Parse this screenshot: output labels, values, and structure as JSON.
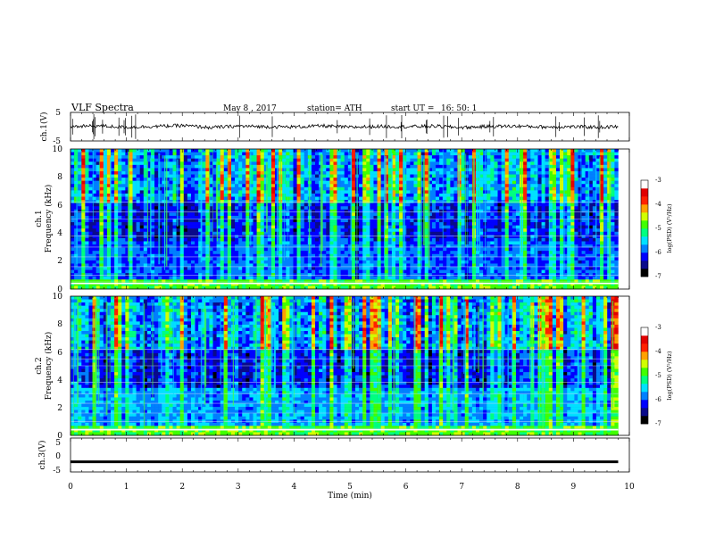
{
  "header": {
    "title": "VLF  Spectra",
    "date": "May 8  , 2017",
    "station": "station= ATH",
    "start_label": "start  UT  =",
    "start_time": "16: 50: 1"
  },
  "colors": {
    "colormap": [
      "#000000",
      "#0a0a8a",
      "#0000ff",
      "#0080ff",
      "#00e0ff",
      "#00ff80",
      "#40ff00",
      "#d0ff00",
      "#ffa000",
      "#ff2000",
      "#e00000",
      "#ffffff"
    ],
    "trace": "#000000"
  },
  "chart_data": [
    {
      "type": "line",
      "ylabel": "ch.1(V)",
      "ylim": [
        -5,
        5
      ],
      "yticks": [
        "5",
        "-5"
      ],
      "x": [
        0,
        0.5,
        1,
        1.5,
        2,
        2.5,
        3,
        3.5,
        4,
        4.5,
        5,
        5.5,
        6,
        6.5,
        7,
        7.5,
        8,
        8.5,
        9,
        9.5,
        9.8
      ],
      "y": [
        0,
        0.3,
        -0.2,
        0.1,
        0.4,
        -0.3,
        0.2,
        0,
        -0.1,
        0.3,
        -0.2,
        0.1,
        0,
        0.2,
        -0.3,
        0.1,
        0.2,
        -0.1,
        0,
        -0.2,
        0
      ]
    },
    {
      "type": "heatmap",
      "ylabel_top": "ch.1",
      "ylabel": "Frequency  (kHz)",
      "ylim": [
        0,
        10
      ],
      "yticks": [
        "0",
        "2",
        "4",
        "6",
        "8",
        "10"
      ],
      "colorbar": {
        "label": "log(PSD) (V²/Hz)",
        "range": [
          -7,
          -3
        ],
        "ticks": [
          "-3",
          "-4",
          "-5",
          "-6",
          "-7"
        ]
      }
    },
    {
      "type": "heatmap",
      "ylabel_top": "ch.2",
      "ylabel": "Frequency  (kHz)",
      "ylim": [
        0,
        10
      ],
      "yticks": [
        "0",
        "2",
        "4",
        "6",
        "8",
        "10"
      ],
      "colorbar": {
        "label": "log(PSD) (V²/Hz)",
        "range": [
          -7,
          -3
        ],
        "ticks": [
          "-3",
          "-4",
          "-5",
          "-6",
          "-7"
        ]
      }
    },
    {
      "type": "line",
      "ylabel": "ch.3(V)",
      "ylim": [
        -5,
        5
      ],
      "yticks": [
        "5",
        "0",
        "-5"
      ],
      "x": [
        0,
        9.8
      ],
      "y": [
        -2,
        -2
      ]
    }
  ],
  "x_axis": {
    "label": "Time  (min)",
    "range": [
      0,
      10
    ],
    "ticks": [
      "0",
      "1",
      "2",
      "3",
      "4",
      "5",
      "6",
      "7",
      "8",
      "9",
      "10"
    ]
  }
}
